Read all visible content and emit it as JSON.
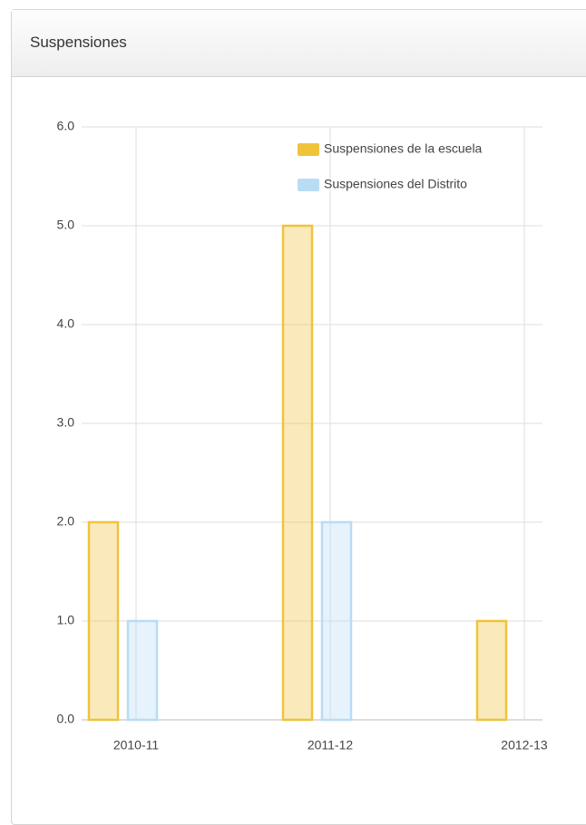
{
  "header": {
    "title": "Suspensiones"
  },
  "chart_data": {
    "type": "bar",
    "categories": [
      "2010-11",
      "2011-12",
      "2012-13"
    ],
    "series": [
      {
        "name": "Suspensiones de la escuela",
        "color": "#f0c33c",
        "values": [
          2,
          5,
          1
        ]
      },
      {
        "name": "Suspensiones del Distrito",
        "color": "#b9dcf5",
        "values": [
          1,
          2,
          0
        ]
      }
    ],
    "ylim": [
      0,
      6
    ],
    "yticks": [
      {
        "value": 0,
        "label": "0.0"
      },
      {
        "value": 1,
        "label": "1.0"
      },
      {
        "value": 2,
        "label": "2.0"
      },
      {
        "value": 3,
        "label": "3.0"
      },
      {
        "value": 4,
        "label": "4.0"
      },
      {
        "value": 5,
        "label": "5.0"
      },
      {
        "value": 6,
        "label": "6.0"
      }
    ],
    "grid": true,
    "legend": "top-right"
  }
}
